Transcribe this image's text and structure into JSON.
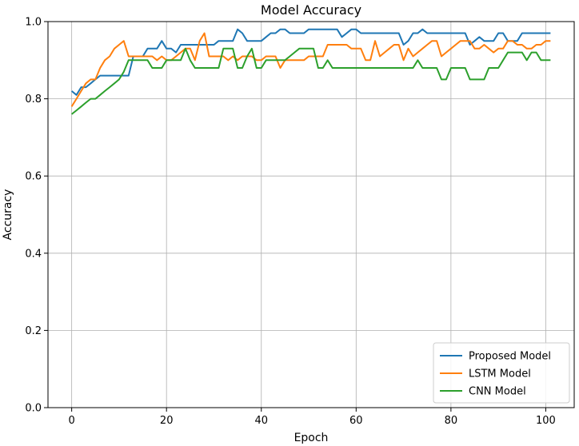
{
  "chart_data": {
    "type": "line",
    "title": "Model Accuracy",
    "xlabel": "Epoch",
    "ylabel": "Accuracy",
    "xlim": [
      -5,
      106
    ],
    "ylim": [
      0.0,
      1.0
    ],
    "xticks": [
      0,
      20,
      40,
      60,
      80,
      100
    ],
    "yticks": [
      0.0,
      0.2,
      0.4,
      0.6,
      0.8,
      1.0
    ],
    "xtick_labels": [
      "0",
      "20",
      "40",
      "60",
      "80",
      "100"
    ],
    "ytick_labels": [
      "0.0",
      "0.2",
      "0.4",
      "0.6",
      "0.8",
      "1.0"
    ],
    "grid": true,
    "legend_position": "bottom-right",
    "series": [
      {
        "name": "Proposed Model",
        "color": "#1f77b4",
        "x": [
          0,
          1,
          2,
          3,
          4,
          5,
          6,
          7,
          8,
          9,
          10,
          11,
          12,
          13,
          14,
          15,
          16,
          17,
          18,
          19,
          20,
          21,
          22,
          23,
          24,
          25,
          26,
          27,
          28,
          29,
          30,
          31,
          32,
          33,
          34,
          35,
          36,
          37,
          38,
          39,
          40,
          41,
          42,
          43,
          44,
          45,
          46,
          47,
          48,
          49,
          50,
          51,
          52,
          53,
          54,
          55,
          56,
          57,
          58,
          59,
          60,
          61,
          62,
          63,
          64,
          65,
          66,
          67,
          68,
          69,
          70,
          71,
          72,
          73,
          74,
          75,
          76,
          77,
          78,
          79,
          80,
          81,
          82,
          83,
          84,
          85,
          86,
          87,
          88,
          89,
          90,
          91,
          92,
          93,
          94,
          95,
          96,
          97,
          98,
          99,
          100,
          101
        ],
        "y": [
          0.82,
          0.81,
          0.83,
          0.83,
          0.84,
          0.85,
          0.86,
          0.86,
          0.86,
          0.86,
          0.86,
          0.86,
          0.86,
          0.91,
          0.91,
          0.91,
          0.93,
          0.93,
          0.93,
          0.95,
          0.93,
          0.93,
          0.92,
          0.94,
          0.94,
          0.94,
          0.94,
          0.94,
          0.94,
          0.94,
          0.94,
          0.95,
          0.95,
          0.95,
          0.95,
          0.98,
          0.97,
          0.95,
          0.95,
          0.95,
          0.95,
          0.96,
          0.97,
          0.97,
          0.98,
          0.98,
          0.97,
          0.97,
          0.97,
          0.97,
          0.98,
          0.98,
          0.98,
          0.98,
          0.98,
          0.98,
          0.98,
          0.96,
          0.97,
          0.98,
          0.98,
          0.97,
          0.97,
          0.97,
          0.97,
          0.97,
          0.97,
          0.97,
          0.97,
          0.97,
          0.94,
          0.95,
          0.97,
          0.97,
          0.98,
          0.97,
          0.97,
          0.97,
          0.97,
          0.97,
          0.97,
          0.97,
          0.97,
          0.97,
          0.94,
          0.95,
          0.96,
          0.95,
          0.95,
          0.95,
          0.97,
          0.97,
          0.95,
          0.95,
          0.95,
          0.97,
          0.97,
          0.97,
          0.97,
          0.97,
          0.97,
          0.97
        ]
      },
      {
        "name": "LSTM Model",
        "color": "#ff7f0e",
        "x": [
          0,
          1,
          2,
          3,
          4,
          5,
          6,
          7,
          8,
          9,
          10,
          11,
          12,
          13,
          14,
          15,
          16,
          17,
          18,
          19,
          20,
          21,
          22,
          23,
          24,
          25,
          26,
          27,
          28,
          29,
          30,
          31,
          32,
          33,
          34,
          35,
          36,
          37,
          38,
          39,
          40,
          41,
          42,
          43,
          44,
          45,
          46,
          47,
          48,
          49,
          50,
          51,
          52,
          53,
          54,
          55,
          56,
          57,
          58,
          59,
          60,
          61,
          62,
          63,
          64,
          65,
          66,
          67,
          68,
          69,
          70,
          71,
          72,
          73,
          74,
          75,
          76,
          77,
          78,
          79,
          80,
          81,
          82,
          83,
          84,
          85,
          86,
          87,
          88,
          89,
          90,
          91,
          92,
          93,
          94,
          95,
          96,
          97,
          98,
          99,
          100,
          101
        ],
        "y": [
          0.78,
          0.8,
          0.82,
          0.84,
          0.85,
          0.85,
          0.88,
          0.9,
          0.91,
          0.93,
          0.94,
          0.95,
          0.91,
          0.91,
          0.91,
          0.91,
          0.91,
          0.91,
          0.9,
          0.91,
          0.9,
          0.9,
          0.91,
          0.92,
          0.93,
          0.93,
          0.9,
          0.95,
          0.97,
          0.91,
          0.91,
          0.91,
          0.91,
          0.9,
          0.91,
          0.9,
          0.91,
          0.91,
          0.91,
          0.9,
          0.9,
          0.91,
          0.91,
          0.91,
          0.88,
          0.9,
          0.9,
          0.9,
          0.9,
          0.9,
          0.91,
          0.91,
          0.91,
          0.91,
          0.94,
          0.94,
          0.94,
          0.94,
          0.94,
          0.93,
          0.93,
          0.93,
          0.9,
          0.9,
          0.95,
          0.91,
          0.92,
          0.93,
          0.94,
          0.94,
          0.9,
          0.93,
          0.91,
          0.92,
          0.93,
          0.94,
          0.95,
          0.95,
          0.91,
          0.92,
          0.93,
          0.94,
          0.95,
          0.95,
          0.95,
          0.93,
          0.93,
          0.94,
          0.93,
          0.92,
          0.93,
          0.93,
          0.95,
          0.95,
          0.94,
          0.94,
          0.93,
          0.93,
          0.94,
          0.94,
          0.95,
          0.95
        ]
      },
      {
        "name": "CNN Model",
        "color": "#2ca02c",
        "x": [
          0,
          1,
          2,
          3,
          4,
          5,
          6,
          7,
          8,
          9,
          10,
          11,
          12,
          13,
          14,
          15,
          16,
          17,
          18,
          19,
          20,
          21,
          22,
          23,
          24,
          25,
          26,
          27,
          28,
          29,
          30,
          31,
          32,
          33,
          34,
          35,
          36,
          37,
          38,
          39,
          40,
          41,
          42,
          43,
          44,
          45,
          46,
          47,
          48,
          49,
          50,
          51,
          52,
          53,
          54,
          55,
          56,
          57,
          58,
          59,
          60,
          61,
          62,
          63,
          64,
          65,
          66,
          67,
          68,
          69,
          70,
          71,
          72,
          73,
          74,
          75,
          76,
          77,
          78,
          79,
          80,
          81,
          82,
          83,
          84,
          85,
          86,
          87,
          88,
          89,
          90,
          91,
          92,
          93,
          94,
          95,
          96,
          97,
          98,
          99,
          100,
          101
        ],
        "y": [
          0.76,
          0.77,
          0.78,
          0.79,
          0.8,
          0.8,
          0.81,
          0.82,
          0.83,
          0.84,
          0.85,
          0.87,
          0.9,
          0.9,
          0.9,
          0.9,
          0.9,
          0.88,
          0.88,
          0.88,
          0.9,
          0.9,
          0.9,
          0.9,
          0.93,
          0.9,
          0.88,
          0.88,
          0.88,
          0.88,
          0.88,
          0.88,
          0.93,
          0.93,
          0.93,
          0.88,
          0.88,
          0.91,
          0.93,
          0.88,
          0.88,
          0.9,
          0.9,
          0.9,
          0.9,
          0.9,
          0.91,
          0.92,
          0.93,
          0.93,
          0.93,
          0.93,
          0.88,
          0.88,
          0.9,
          0.88,
          0.88,
          0.88,
          0.88,
          0.88,
          0.88,
          0.88,
          0.88,
          0.88,
          0.88,
          0.88,
          0.88,
          0.88,
          0.88,
          0.88,
          0.88,
          0.88,
          0.88,
          0.9,
          0.88,
          0.88,
          0.88,
          0.88,
          0.85,
          0.85,
          0.88,
          0.88,
          0.88,
          0.88,
          0.85,
          0.85,
          0.85,
          0.85,
          0.88,
          0.88,
          0.88,
          0.9,
          0.92,
          0.92,
          0.92,
          0.92,
          0.9,
          0.92,
          0.92,
          0.9,
          0.9,
          0.9
        ]
      }
    ]
  }
}
